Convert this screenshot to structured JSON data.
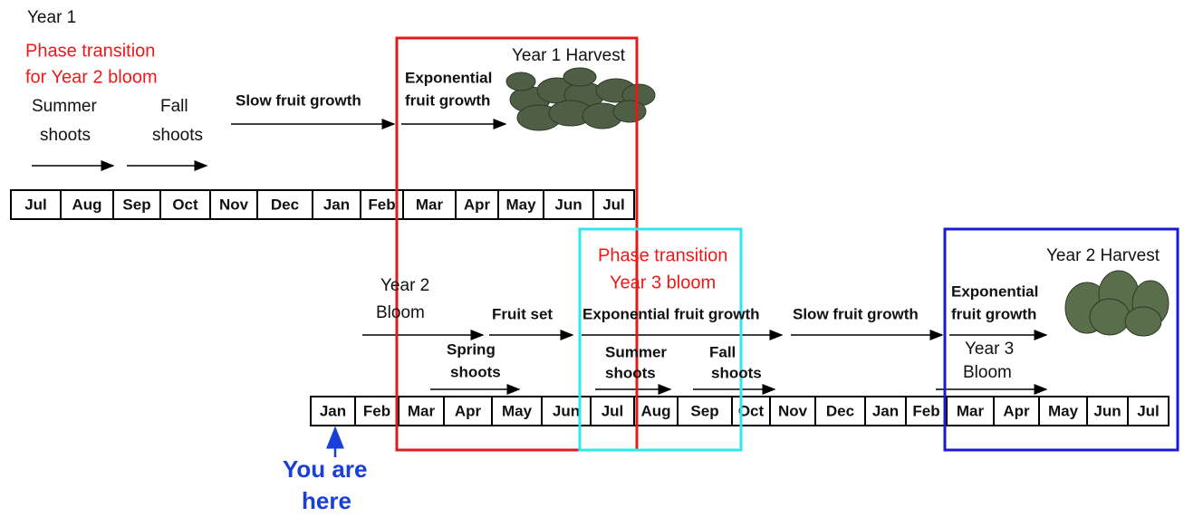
{
  "year1": {
    "title": "Year 1",
    "phase_transition": [
      "Phase transition",
      "for Year 2 bloom"
    ],
    "summer_shoots": [
      "Summer",
      "shoots"
    ],
    "fall_shoots": [
      "Fall",
      "shoots"
    ],
    "slow_growth": "Slow fruit growth",
    "exp_growth": [
      "Exponential",
      "fruit growth"
    ],
    "harvest": "Year 1 Harvest",
    "months": [
      "Jul",
      "Aug",
      "Sep",
      "Oct",
      "Nov",
      "Dec",
      "Jan",
      "Feb",
      "Mar",
      "Apr",
      "May",
      "Jun",
      "Jul"
    ]
  },
  "year2": {
    "bloom": [
      "Year 2",
      "Bloom"
    ],
    "fruit_set": "Fruit set",
    "spring_shoots": [
      "Spring",
      "shoots"
    ],
    "phase_transition": [
      "Phase transition",
      "Year 3 bloom"
    ],
    "summer_shoots": [
      "Summer",
      "shoots"
    ],
    "fall_shoots": [
      "Fall",
      "shoots"
    ],
    "exp_growth_1": "Exponential fruit growth",
    "slow_growth": "Slow fruit growth",
    "exp_growth_2": [
      "Exponential",
      "fruit growth"
    ],
    "year3_bloom": [
      "Year 3",
      "Bloom"
    ],
    "harvest": "Year 2 Harvest",
    "months": [
      "Jan",
      "Feb",
      "Mar",
      "Apr",
      "May",
      "Jun",
      "Jul",
      "Aug",
      "Sep",
      "Oct",
      "Nov",
      "Dec",
      "Jan",
      "Feb",
      "Mar",
      "Apr",
      "May",
      "Jun",
      "Jul"
    ]
  },
  "marker": [
    "You are",
    "here"
  ]
}
